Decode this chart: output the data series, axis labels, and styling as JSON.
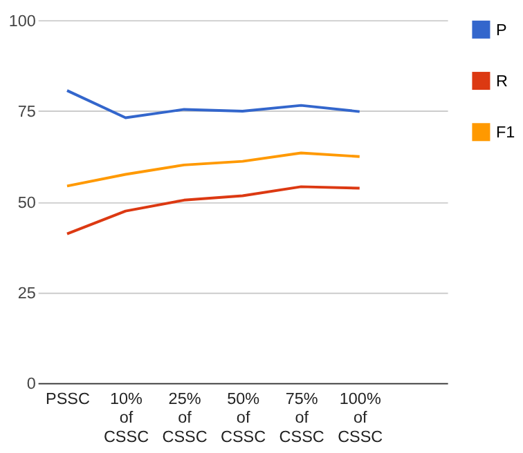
{
  "chart_data": {
    "type": "line",
    "categories": [
      "PSSC",
      "10%\nof\nCSSC",
      "25%\nof\nCSSC",
      "50%\nof\nCSSC",
      "75%\nof\nCSSC",
      "100%\nof\nCSSC",
      null
    ],
    "series": [
      {
        "name": "P",
        "color": "#3366cc",
        "values": [
          80.6,
          73.1,
          75.4,
          74.9,
          76.5,
          74.8,
          null
        ]
      },
      {
        "name": "R",
        "color": "#dc3912",
        "values": [
          41.1,
          47.4,
          50.4,
          51.6,
          54.1,
          53.7,
          null
        ]
      },
      {
        "name": "F1",
        "color": "#ff9900",
        "values": [
          54.3,
          57.5,
          60.1,
          61.1,
          63.4,
          62.4,
          null
        ]
      }
    ],
    "ylim": [
      0,
      100
    ],
    "yticks": [
      0,
      25,
      50,
      75,
      100
    ],
    "grid": "y",
    "legend": "top right",
    "marker": "none",
    "line_style": "solid"
  }
}
